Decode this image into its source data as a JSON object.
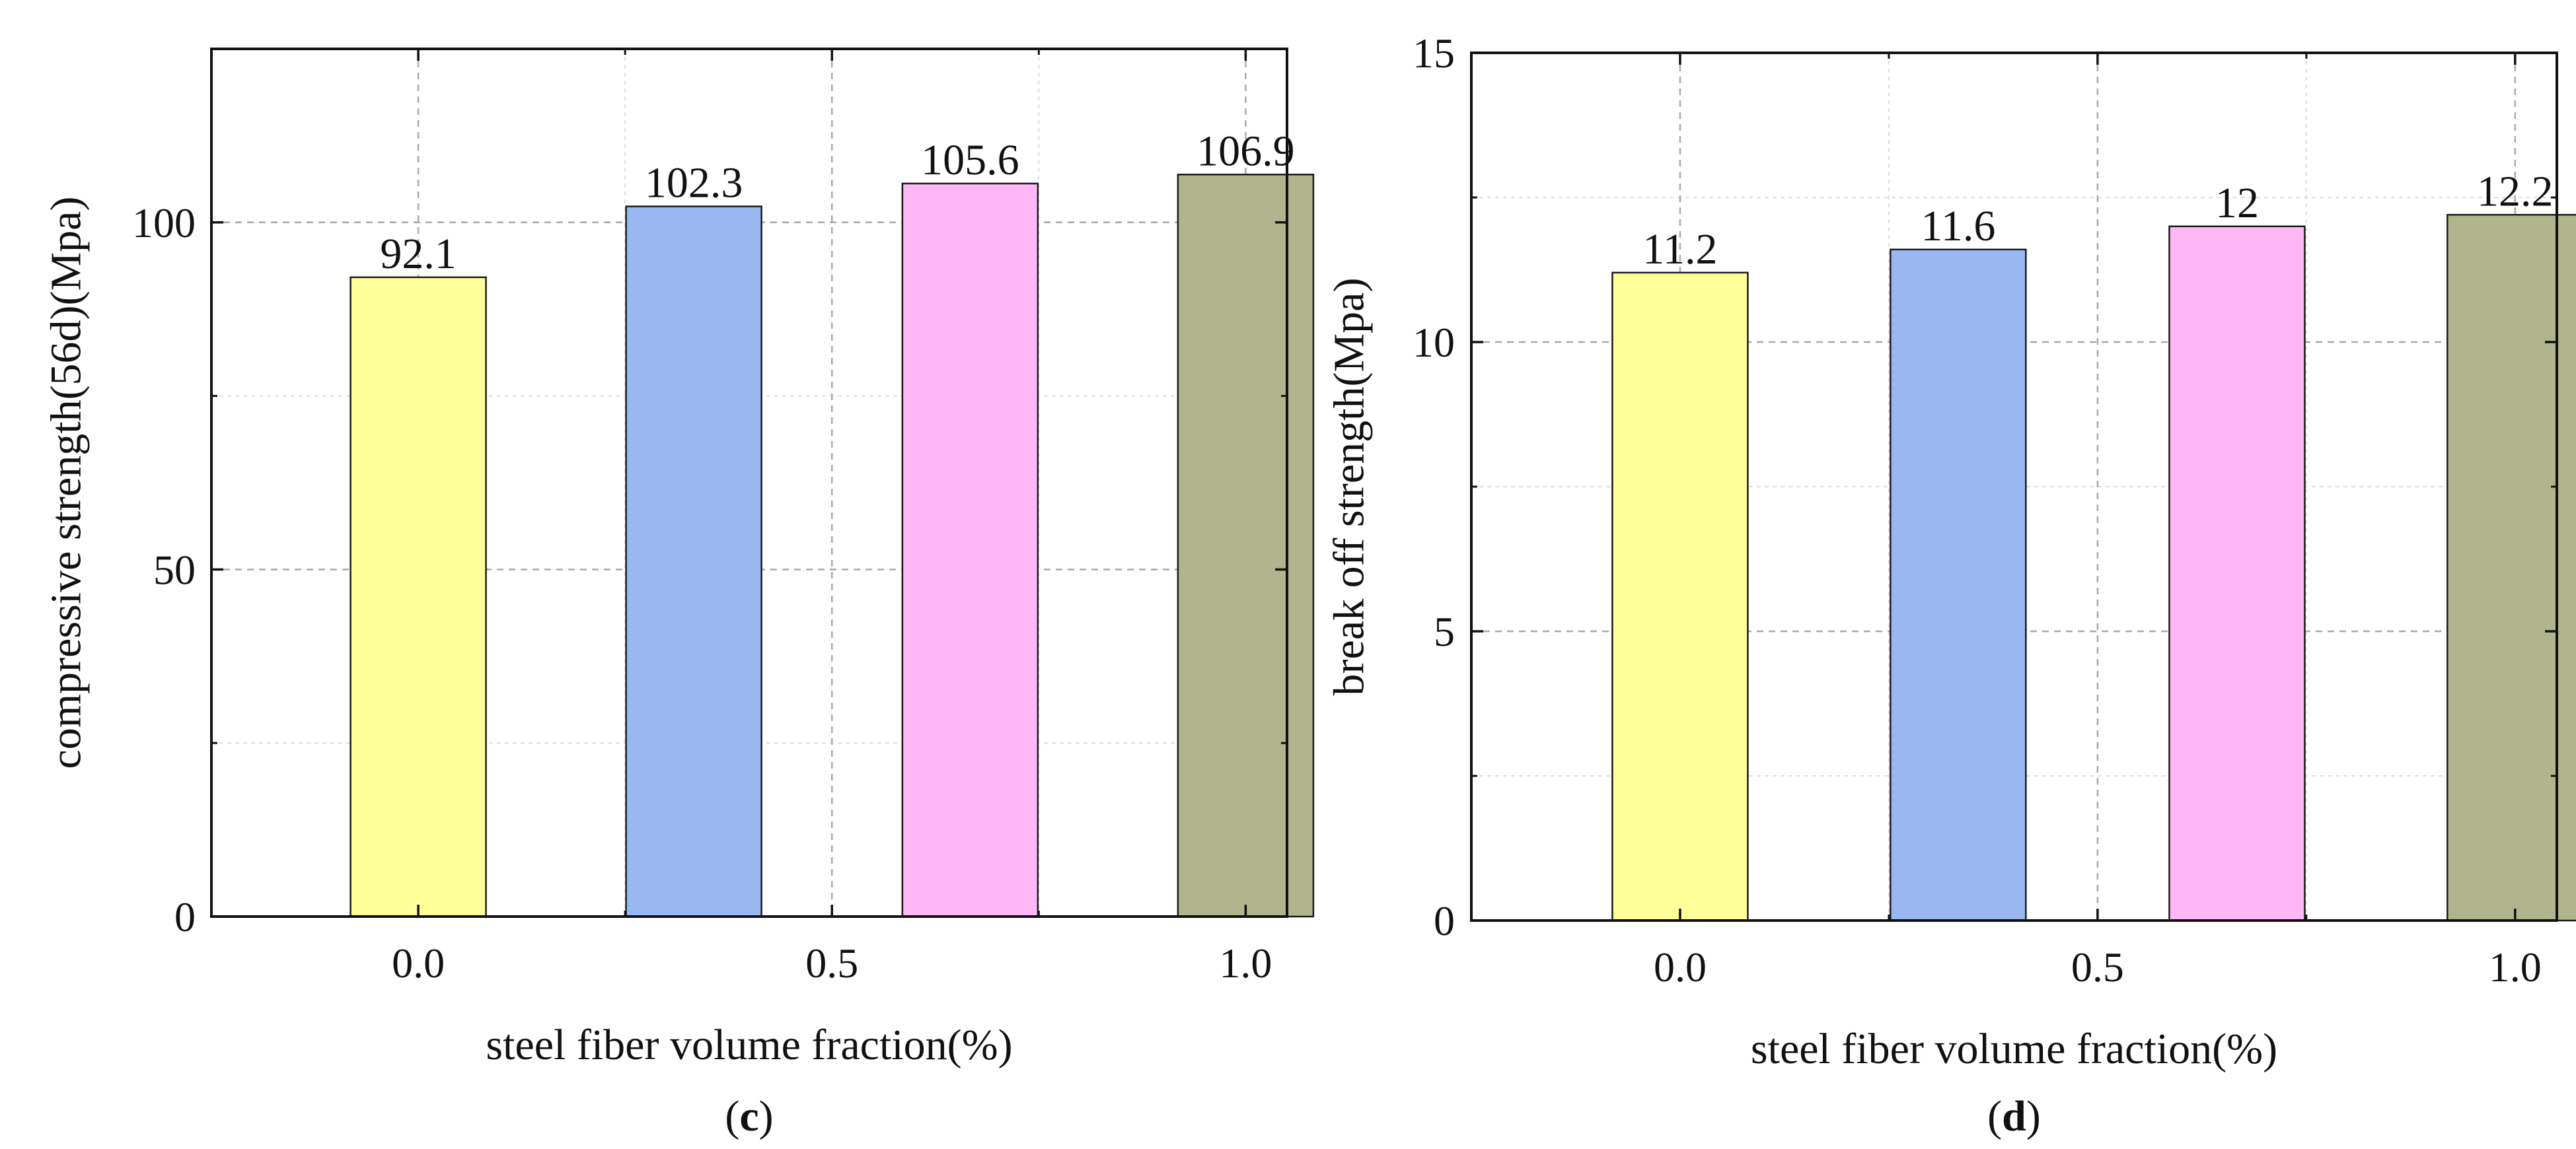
{
  "figure": {
    "panels": [
      {
        "panel_label": "c",
        "panel_label_display": "(c)"
      },
      {
        "panel_label": "d",
        "panel_label_display": "(d)"
      }
    ]
  },
  "chart_data": [
    {
      "type": "bar",
      "title": "",
      "xlabel": "steel fiber volume fraction(%)",
      "ylabel": "compressive strength(56d)(Mpa)",
      "x": [
        0.0,
        0.333,
        0.667,
        1.0
      ],
      "values": [
        92.1,
        102.3,
        105.6,
        106.9
      ],
      "value_labels": [
        "92.1",
        "102.3",
        "105.6",
        "106.9"
      ],
      "bar_colors": [
        "#FFFF99",
        "#99B8F2",
        "#FFB8F5",
        "#B0B58E"
      ],
      "xlim": [
        -0.25,
        1.05
      ],
      "ylim": [
        0,
        125
      ],
      "xticks": [
        0.0,
        0.5,
        1.0
      ],
      "xtick_labels": [
        "0.0",
        "0.5",
        "1.0"
      ],
      "yticks": [
        0,
        50,
        100
      ],
      "ytick_labels": [
        "0",
        "50",
        "100"
      ],
      "grid": true,
      "legend": "none"
    },
    {
      "type": "bar",
      "title": "",
      "xlabel": "steel fiber volume fraction(%)",
      "ylabel": "break off strength(Mpa)",
      "x": [
        0.0,
        0.333,
        0.667,
        1.0
      ],
      "values": [
        11.2,
        11.6,
        12,
        12.2
      ],
      "value_labels": [
        "11.2",
        "11.6",
        "12",
        "12.2"
      ],
      "bar_colors": [
        "#FFFF99",
        "#99B8F2",
        "#FFB8F5",
        "#B0B58E"
      ],
      "xlim": [
        -0.25,
        1.05
      ],
      "ylim": [
        0,
        15
      ],
      "xticks": [
        0.0,
        0.5,
        1.0
      ],
      "xtick_labels": [
        "0.0",
        "0.5",
        "1.0"
      ],
      "yticks": [
        0,
        5,
        10,
        15
      ],
      "ytick_labels": [
        "0",
        "5",
        "10",
        "15"
      ],
      "grid": true,
      "legend": "none"
    }
  ]
}
